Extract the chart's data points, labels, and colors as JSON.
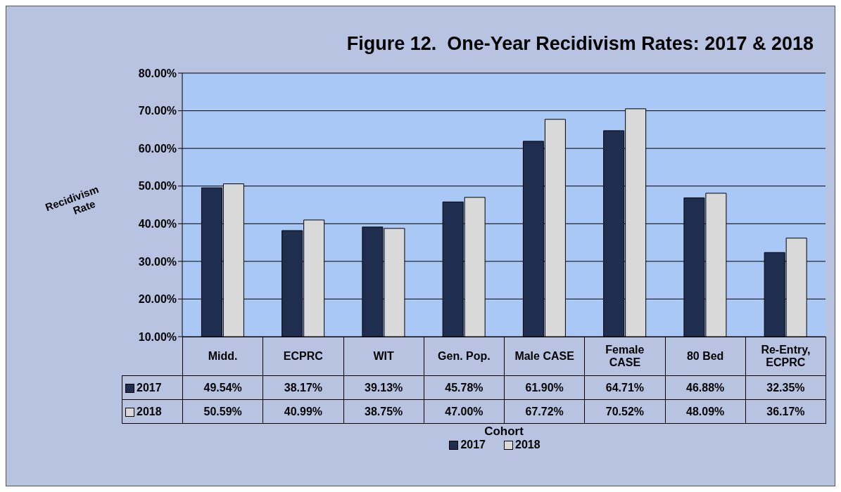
{
  "chart_data": {
    "type": "bar",
    "title": "Figure 12.  One-Year Recidivism Rates: 2017 & 2018",
    "xlabel": "Cohort",
    "ylabel": "Recidivism Rate",
    "categories": [
      "Midd.",
      "ECPRC",
      "WIT",
      "Gen. Pop.",
      "Male CASE",
      "Female CASE",
      "80 Bed",
      "Re-Entry, ECPRC"
    ],
    "series": [
      {
        "name": "2017",
        "color": "#1f2d4f",
        "values": [
          49.54,
          38.17,
          39.13,
          45.78,
          61.9,
          64.71,
          46.88,
          32.35
        ],
        "value_labels": [
          "49.54%",
          "38.17%",
          "39.13%",
          "45.78%",
          "61.90%",
          "64.71%",
          "46.88%",
          "32.35%"
        ]
      },
      {
        "name": "2018",
        "color": "#d9d9d9",
        "values": [
          50.59,
          40.99,
          38.75,
          47.0,
          67.72,
          70.52,
          48.09,
          36.17
        ],
        "value_labels": [
          "50.59%",
          "40.99%",
          "38.75%",
          "47.00%",
          "67.72%",
          "70.52%",
          "48.09%",
          "36.17%"
        ]
      }
    ],
    "ylim": [
      10,
      80
    ],
    "yticks": [
      {
        "value": 10,
        "label": "10.00%"
      },
      {
        "value": 20,
        "label": "20.00%"
      },
      {
        "value": 30,
        "label": "30.00%"
      },
      {
        "value": 40,
        "label": "40.00%"
      },
      {
        "value": 50,
        "label": "50.00%"
      },
      {
        "value": 60,
        "label": "60.00%"
      },
      {
        "value": 70,
        "label": "70.00%"
      },
      {
        "value": 80,
        "label": "80.00%"
      }
    ],
    "grid": "y",
    "legend": "bottom"
  }
}
